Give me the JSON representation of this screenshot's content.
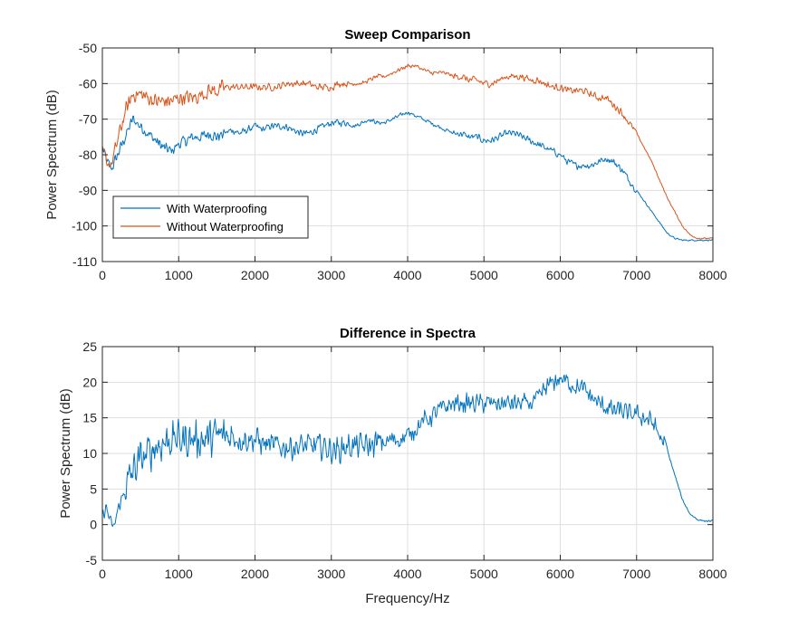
{
  "chart_data": [
    {
      "type": "line",
      "title": "Sweep Comparison",
      "xlabel": "",
      "ylabel": "Power Spectrum (dB)",
      "xlim": [
        0,
        8000
      ],
      "ylim": [
        -110,
        -50
      ],
      "xticks": [
        0,
        1000,
        2000,
        3000,
        4000,
        5000,
        6000,
        7000,
        8000
      ],
      "yticks": [
        -50,
        -60,
        -70,
        -80,
        -90,
        -100,
        -110
      ],
      "grid": true,
      "legend_position": "lower-left",
      "series": [
        {
          "name": "With Waterproofing",
          "color": "#0072BD",
          "points": [
            [
              0,
              -78
            ],
            [
              60,
              -82
            ],
            [
              120,
              -84
            ],
            [
              200,
              -80
            ],
            [
              300,
              -75
            ],
            [
              400,
              -70
            ],
            [
              500,
              -72
            ],
            [
              600,
              -74
            ],
            [
              700,
              -76
            ],
            [
              800,
              -78
            ],
            [
              900,
              -79
            ],
            [
              1000,
              -77
            ],
            [
              1100,
              -76
            ],
            [
              1200,
              -75
            ],
            [
              1300,
              -75
            ],
            [
              1400,
              -74
            ],
            [
              1500,
              -75
            ],
            [
              1600,
              -74
            ],
            [
              1700,
              -73
            ],
            [
              1800,
              -74
            ],
            [
              1900,
              -73
            ],
            [
              2000,
              -72
            ],
            [
              2100,
              -73
            ],
            [
              2200,
              -72
            ],
            [
              2300,
              -72
            ],
            [
              2400,
              -72
            ],
            [
              2500,
              -73
            ],
            [
              2600,
              -74
            ],
            [
              2700,
              -74
            ],
            [
              2800,
              -73
            ],
            [
              2900,
              -72
            ],
            [
              3000,
              -71
            ],
            [
              3100,
              -71
            ],
            [
              3200,
              -71
            ],
            [
              3300,
              -72
            ],
            [
              3400,
              -71
            ],
            [
              3500,
              -70
            ],
            [
              3600,
              -71
            ],
            [
              3700,
              -71
            ],
            [
              3800,
              -70
            ],
            [
              3900,
              -69
            ],
            [
              4000,
              -68
            ],
            [
              4100,
              -69
            ],
            [
              4200,
              -70
            ],
            [
              4300,
              -71
            ],
            [
              4400,
              -72
            ],
            [
              4500,
              -73
            ],
            [
              4600,
              -74
            ],
            [
              4700,
              -74
            ],
            [
              4800,
              -75
            ],
            [
              4900,
              -75
            ],
            [
              5000,
              -76
            ],
            [
              5100,
              -76
            ],
            [
              5200,
              -75
            ],
            [
              5300,
              -74
            ],
            [
              5400,
              -74
            ],
            [
              5500,
              -75
            ],
            [
              5600,
              -76
            ],
            [
              5700,
              -77
            ],
            [
              5800,
              -78
            ],
            [
              5900,
              -79
            ],
            [
              6000,
              -80
            ],
            [
              6100,
              -82
            ],
            [
              6200,
              -83
            ],
            [
              6300,
              -83
            ],
            [
              6400,
              -83
            ],
            [
              6500,
              -82
            ],
            [
              6600,
              -81
            ],
            [
              6700,
              -82
            ],
            [
              6800,
              -84
            ],
            [
              6900,
              -87
            ],
            [
              7000,
              -90
            ],
            [
              7100,
              -93
            ],
            [
              7200,
              -96
            ],
            [
              7300,
              -99
            ],
            [
              7400,
              -102
            ],
            [
              7500,
              -103.5
            ],
            [
              7600,
              -104
            ],
            [
              7700,
              -104
            ],
            [
              7800,
              -104
            ],
            [
              7900,
              -104
            ],
            [
              8000,
              -104
            ]
          ]
        },
        {
          "name": "Without Waterproofing",
          "color": "#D95319",
          "points": [
            [
              0,
              -79
            ],
            [
              60,
              -82
            ],
            [
              120,
              -83
            ],
            [
              200,
              -76
            ],
            [
              300,
              -68
            ],
            [
              400,
              -63
            ],
            [
              500,
              -63
            ],
            [
              600,
              -64
            ],
            [
              700,
              -65
            ],
            [
              800,
              -65
            ],
            [
              900,
              -65
            ],
            [
              1000,
              -64
            ],
            [
              1100,
              -64
            ],
            [
              1200,
              -64
            ],
            [
              1300,
              -63
            ],
            [
              1400,
              -62
            ],
            [
              1500,
              -62
            ],
            [
              1600,
              -61
            ],
            [
              1700,
              -61
            ],
            [
              1800,
              -61
            ],
            [
              1900,
              -61
            ],
            [
              2000,
              -61
            ],
            [
              2100,
              -61
            ],
            [
              2200,
              -61
            ],
            [
              2300,
              -61
            ],
            [
              2400,
              -60
            ],
            [
              2500,
              -60
            ],
            [
              2600,
              -60
            ],
            [
              2700,
              -60
            ],
            [
              2800,
              -61
            ],
            [
              2900,
              -61
            ],
            [
              3000,
              -61
            ],
            [
              3100,
              -60
            ],
            [
              3200,
              -60
            ],
            [
              3300,
              -60
            ],
            [
              3400,
              -60
            ],
            [
              3500,
              -59
            ],
            [
              3600,
              -58
            ],
            [
              3700,
              -58
            ],
            [
              3800,
              -57
            ],
            [
              3900,
              -56
            ],
            [
              4000,
              -55
            ],
            [
              4100,
              -55
            ],
            [
              4200,
              -56
            ],
            [
              4300,
              -57
            ],
            [
              4400,
              -57
            ],
            [
              4500,
              -57
            ],
            [
              4600,
              -58
            ],
            [
              4700,
              -58
            ],
            [
              4800,
              -59
            ],
            [
              4900,
              -59
            ],
            [
              5000,
              -60
            ],
            [
              5100,
              -60
            ],
            [
              5200,
              -59
            ],
            [
              5300,
              -58
            ],
            [
              5400,
              -58
            ],
            [
              5500,
              -58
            ],
            [
              5600,
              -59
            ],
            [
              5700,
              -59
            ],
            [
              5800,
              -60
            ],
            [
              5900,
              -61
            ],
            [
              6000,
              -61
            ],
            [
              6100,
              -62
            ],
            [
              6200,
              -62
            ],
            [
              6300,
              -62
            ],
            [
              6400,
              -63
            ],
            [
              6500,
              -64
            ],
            [
              6600,
              -64
            ],
            [
              6700,
              -66
            ],
            [
              6800,
              -68
            ],
            [
              6900,
              -71
            ],
            [
              7000,
              -74
            ],
            [
              7100,
              -78
            ],
            [
              7200,
              -82
            ],
            [
              7300,
              -87
            ],
            [
              7400,
              -92
            ],
            [
              7500,
              -96
            ],
            [
              7600,
              -100
            ],
            [
              7700,
              -102.5
            ],
            [
              7800,
              -103.5
            ],
            [
              7900,
              -103.5
            ],
            [
              8000,
              -103.5
            ]
          ]
        }
      ]
    },
    {
      "type": "line",
      "title": "Difference in Spectra",
      "xlabel": "Frequency/Hz",
      "ylabel": "Power Spectrum (dB)",
      "xlim": [
        0,
        8000
      ],
      "ylim": [
        -5,
        25
      ],
      "xticks": [
        0,
        1000,
        2000,
        3000,
        4000,
        5000,
        6000,
        7000,
        8000
      ],
      "yticks": [
        25,
        20,
        15,
        10,
        5,
        0,
        -5
      ],
      "grid": true,
      "series": [
        {
          "color": "#0072BD",
          "points": [
            [
              0,
              1
            ],
            [
              50,
              2.5
            ],
            [
              100,
              0.5
            ],
            [
              150,
              -0.5
            ],
            [
              200,
              2
            ],
            [
              300,
              5
            ],
            [
              400,
              7.5
            ],
            [
              500,
              9
            ],
            [
              600,
              10
            ],
            [
              700,
              11
            ],
            [
              800,
              11.5
            ],
            [
              900,
              12
            ],
            [
              1000,
              12
            ],
            [
              1100,
              12
            ],
            [
              1200,
              12
            ],
            [
              1300,
              12
            ],
            [
              1400,
              12
            ],
            [
              1500,
              12.5
            ],
            [
              1600,
              12.5
            ],
            [
              1700,
              12.5
            ],
            [
              1800,
              12
            ],
            [
              1900,
              12
            ],
            [
              2000,
              12
            ],
            [
              2100,
              11.5
            ],
            [
              2200,
              11
            ],
            [
              2300,
              11
            ],
            [
              2400,
              11
            ],
            [
              2500,
              11
            ],
            [
              2600,
              11
            ],
            [
              2700,
              11
            ],
            [
              2800,
              11
            ],
            [
              2900,
              11
            ],
            [
              3000,
              10.5
            ],
            [
              3100,
              10.5
            ],
            [
              3200,
              11
            ],
            [
              3300,
              11
            ],
            [
              3400,
              11
            ],
            [
              3500,
              11
            ],
            [
              3600,
              11.5
            ],
            [
              3700,
              11.5
            ],
            [
              3800,
              12
            ],
            [
              3900,
              12
            ],
            [
              4000,
              12.5
            ],
            [
              4100,
              13.5
            ],
            [
              4200,
              14.5
            ],
            [
              4300,
              15
            ],
            [
              4400,
              16
            ],
            [
              4500,
              16.5
            ],
            [
              4600,
              17
            ],
            [
              4700,
              17
            ],
            [
              4800,
              17
            ],
            [
              4900,
              17
            ],
            [
              5000,
              17
            ],
            [
              5100,
              17
            ],
            [
              5200,
              17
            ],
            [
              5300,
              17
            ],
            [
              5400,
              17
            ],
            [
              5500,
              17
            ],
            [
              5600,
              17
            ],
            [
              5700,
              17.5
            ],
            [
              5800,
              19
            ],
            [
              5900,
              20
            ],
            [
              6000,
              20.5
            ],
            [
              6100,
              20
            ],
            [
              6200,
              19.5
            ],
            [
              6300,
              19
            ],
            [
              6400,
              18
            ],
            [
              6500,
              17
            ],
            [
              6600,
              16.5
            ],
            [
              6700,
              16
            ],
            [
              6800,
              16
            ],
            [
              6900,
              15.5
            ],
            [
              7000,
              15.5
            ],
            [
              7100,
              15
            ],
            [
              7200,
              14.5
            ],
            [
              7300,
              12.5
            ],
            [
              7400,
              10.5
            ],
            [
              7500,
              7
            ],
            [
              7600,
              3.5
            ],
            [
              7700,
              1.5
            ],
            [
              7800,
              0.7
            ],
            [
              7900,
              0.5
            ],
            [
              8000,
              0.5
            ]
          ]
        }
      ]
    }
  ]
}
